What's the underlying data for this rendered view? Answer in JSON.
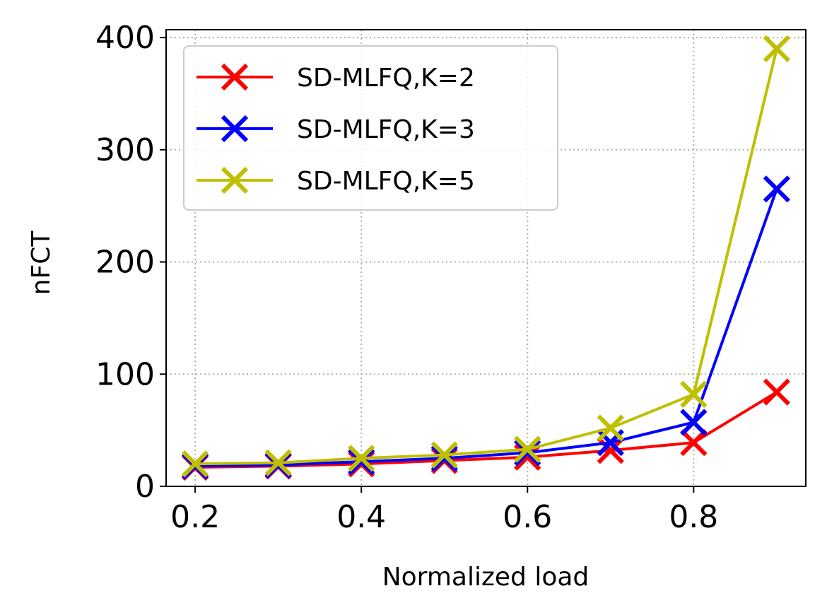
{
  "chart_data": {
    "type": "line",
    "title": "",
    "xlabel": "Normalized load",
    "ylabel": "nFCT",
    "x": [
      0.2,
      0.3,
      0.4,
      0.5,
      0.6,
      0.7,
      0.8,
      0.9
    ],
    "xlim": [
      0.165,
      0.935
    ],
    "ylim": [
      0,
      407
    ],
    "xticks": [
      0.2,
      0.4,
      0.6,
      0.8
    ],
    "xtick_labels": [
      "0.2",
      "0.4",
      "0.6",
      "0.8"
    ],
    "yticks": [
      0,
      100,
      200,
      300,
      400
    ],
    "ytick_labels": [
      "0",
      "100",
      "200",
      "300",
      "400"
    ],
    "grid": true,
    "legend_position": "top-left",
    "series": [
      {
        "name": "SD-MLFQ,K=2",
        "color": "#ff0000",
        "marker": "x",
        "values": [
          17,
          18,
          20,
          23,
          26,
          32,
          39,
          84
        ]
      },
      {
        "name": "SD-MLFQ,K=3",
        "color": "#0000ff",
        "marker": "x",
        "values": [
          18,
          19,
          22,
          25,
          30,
          39,
          57,
          265
        ]
      },
      {
        "name": "SD-MLFQ,K=5",
        "color": "#bfbf00",
        "marker": "x",
        "values": [
          20,
          21,
          25,
          28,
          33,
          52,
          82,
          390
        ]
      }
    ]
  }
}
